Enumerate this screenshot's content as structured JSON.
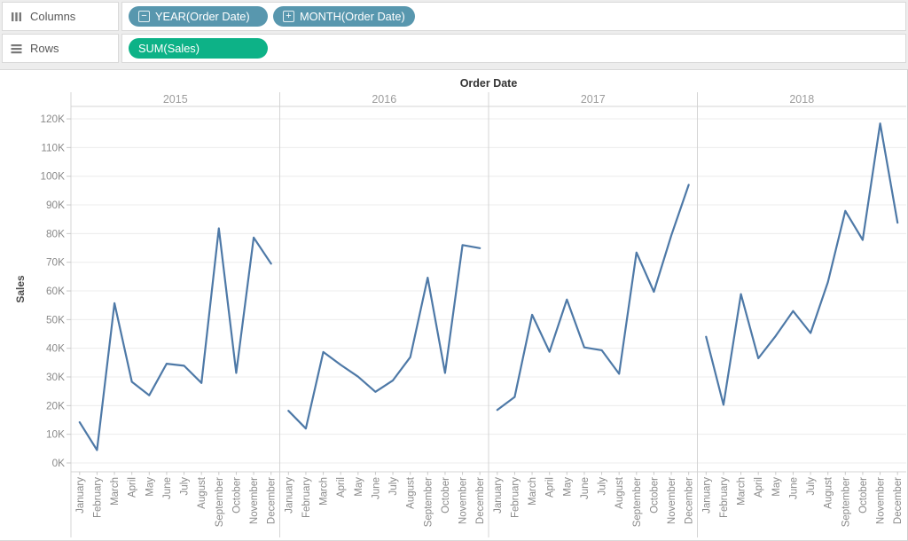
{
  "shelves": {
    "columns": {
      "label": "Columns",
      "pills": [
        {
          "label": "YEAR(Order Date)",
          "toggle": "−",
          "toggle_name": "collapse-hierarchy-icon"
        },
        {
          "label": "MONTH(Order Date)",
          "toggle": "+",
          "toggle_name": "expand-hierarchy-icon"
        }
      ]
    },
    "rows": {
      "label": "Rows",
      "pills": [
        {
          "label": "SUM(Sales)"
        }
      ]
    }
  },
  "colors": {
    "dimension_pill": "#5897ae",
    "measure_pill": "#0db287",
    "line": "#4e79a7",
    "grid": "#ececec",
    "axis_line": "#d4d4d4",
    "tick_text": "#8a8a8a",
    "year_text": "#9c9c9c",
    "title_text": "#333333",
    "axis_title_text": "#4b4b4b"
  },
  "chart_data": {
    "type": "line",
    "title": "Order Date",
    "ylabel": "Sales",
    "facets": [
      "2015",
      "2016",
      "2017",
      "2018"
    ],
    "categories": [
      "January",
      "February",
      "March",
      "April",
      "May",
      "June",
      "July",
      "August",
      "September",
      "October",
      "November",
      "December"
    ],
    "y_tick_labels": [
      "0K",
      "10K",
      "20K",
      "30K",
      "40K",
      "50K",
      "60K",
      "70K",
      "80K",
      "90K",
      "100K",
      "110K",
      "120K"
    ],
    "ylim": [
      0,
      124
    ],
    "unit": "K",
    "grid": true,
    "series": [
      {
        "name": "2015",
        "values": [
          14.2,
          4.5,
          55.7,
          28.3,
          23.6,
          34.6,
          33.9,
          27.9,
          81.8,
          31.4,
          78.6,
          69.5
        ]
      },
      {
        "name": "2016",
        "values": [
          18.2,
          12.0,
          38.7,
          34.2,
          30.1,
          24.8,
          28.8,
          36.9,
          64.6,
          31.4,
          76.0,
          74.9
        ]
      },
      {
        "name": "2017",
        "values": [
          18.5,
          23.0,
          51.7,
          38.8,
          57.0,
          40.3,
          39.3,
          31.1,
          73.4,
          59.7,
          79.4,
          97.0
        ]
      },
      {
        "name": "2018",
        "values": [
          44.0,
          20.3,
          58.9,
          36.5,
          44.3,
          53.0,
          45.3,
          63.1,
          87.9,
          77.8,
          118.4,
          83.8
        ]
      }
    ]
  }
}
